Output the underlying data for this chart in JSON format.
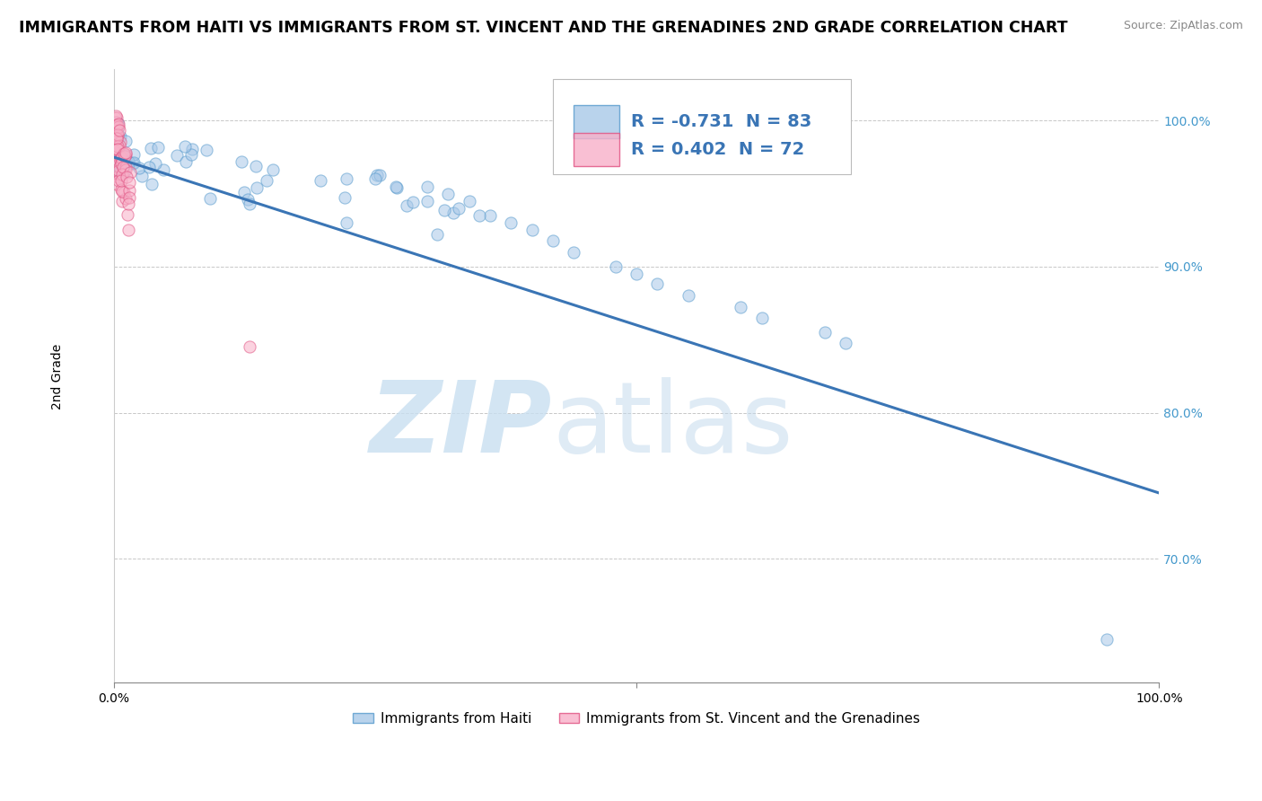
{
  "title": "IMMIGRANTS FROM HAITI VS IMMIGRANTS FROM ST. VINCENT AND THE GRENADINES 2ND GRADE CORRELATION CHART",
  "source": "Source: ZipAtlas.com",
  "ylabel_label": "2nd Grade",
  "xlim": [
    0.0,
    1.0
  ],
  "ylim": [
    0.615,
    1.035
  ],
  "yticks": [
    0.7,
    0.8,
    0.9,
    1.0
  ],
  "ytick_labels": [
    "70.0%",
    "80.0%",
    "90.0%",
    "100.0%"
  ],
  "grid_color": "#c8c8c8",
  "blue_color": "#a8c8e8",
  "blue_edge": "#5599cc",
  "pink_color": "#f8b0c8",
  "pink_edge": "#e05080",
  "trend_blue_color": "#3a75b5",
  "R_blue": -0.731,
  "N_blue": 83,
  "R_pink": 0.402,
  "N_pink": 72,
  "blue_trend_x": [
    0.0,
    1.0
  ],
  "blue_trend_y": [
    0.975,
    0.745
  ],
  "marker_size": 90,
  "marker_alpha": 0.55,
  "figure_bg": "#ffffff",
  "title_fontsize": 12.5,
  "axis_label_fontsize": 10,
  "tick_fontsize": 10,
  "legend_fontsize": 14
}
